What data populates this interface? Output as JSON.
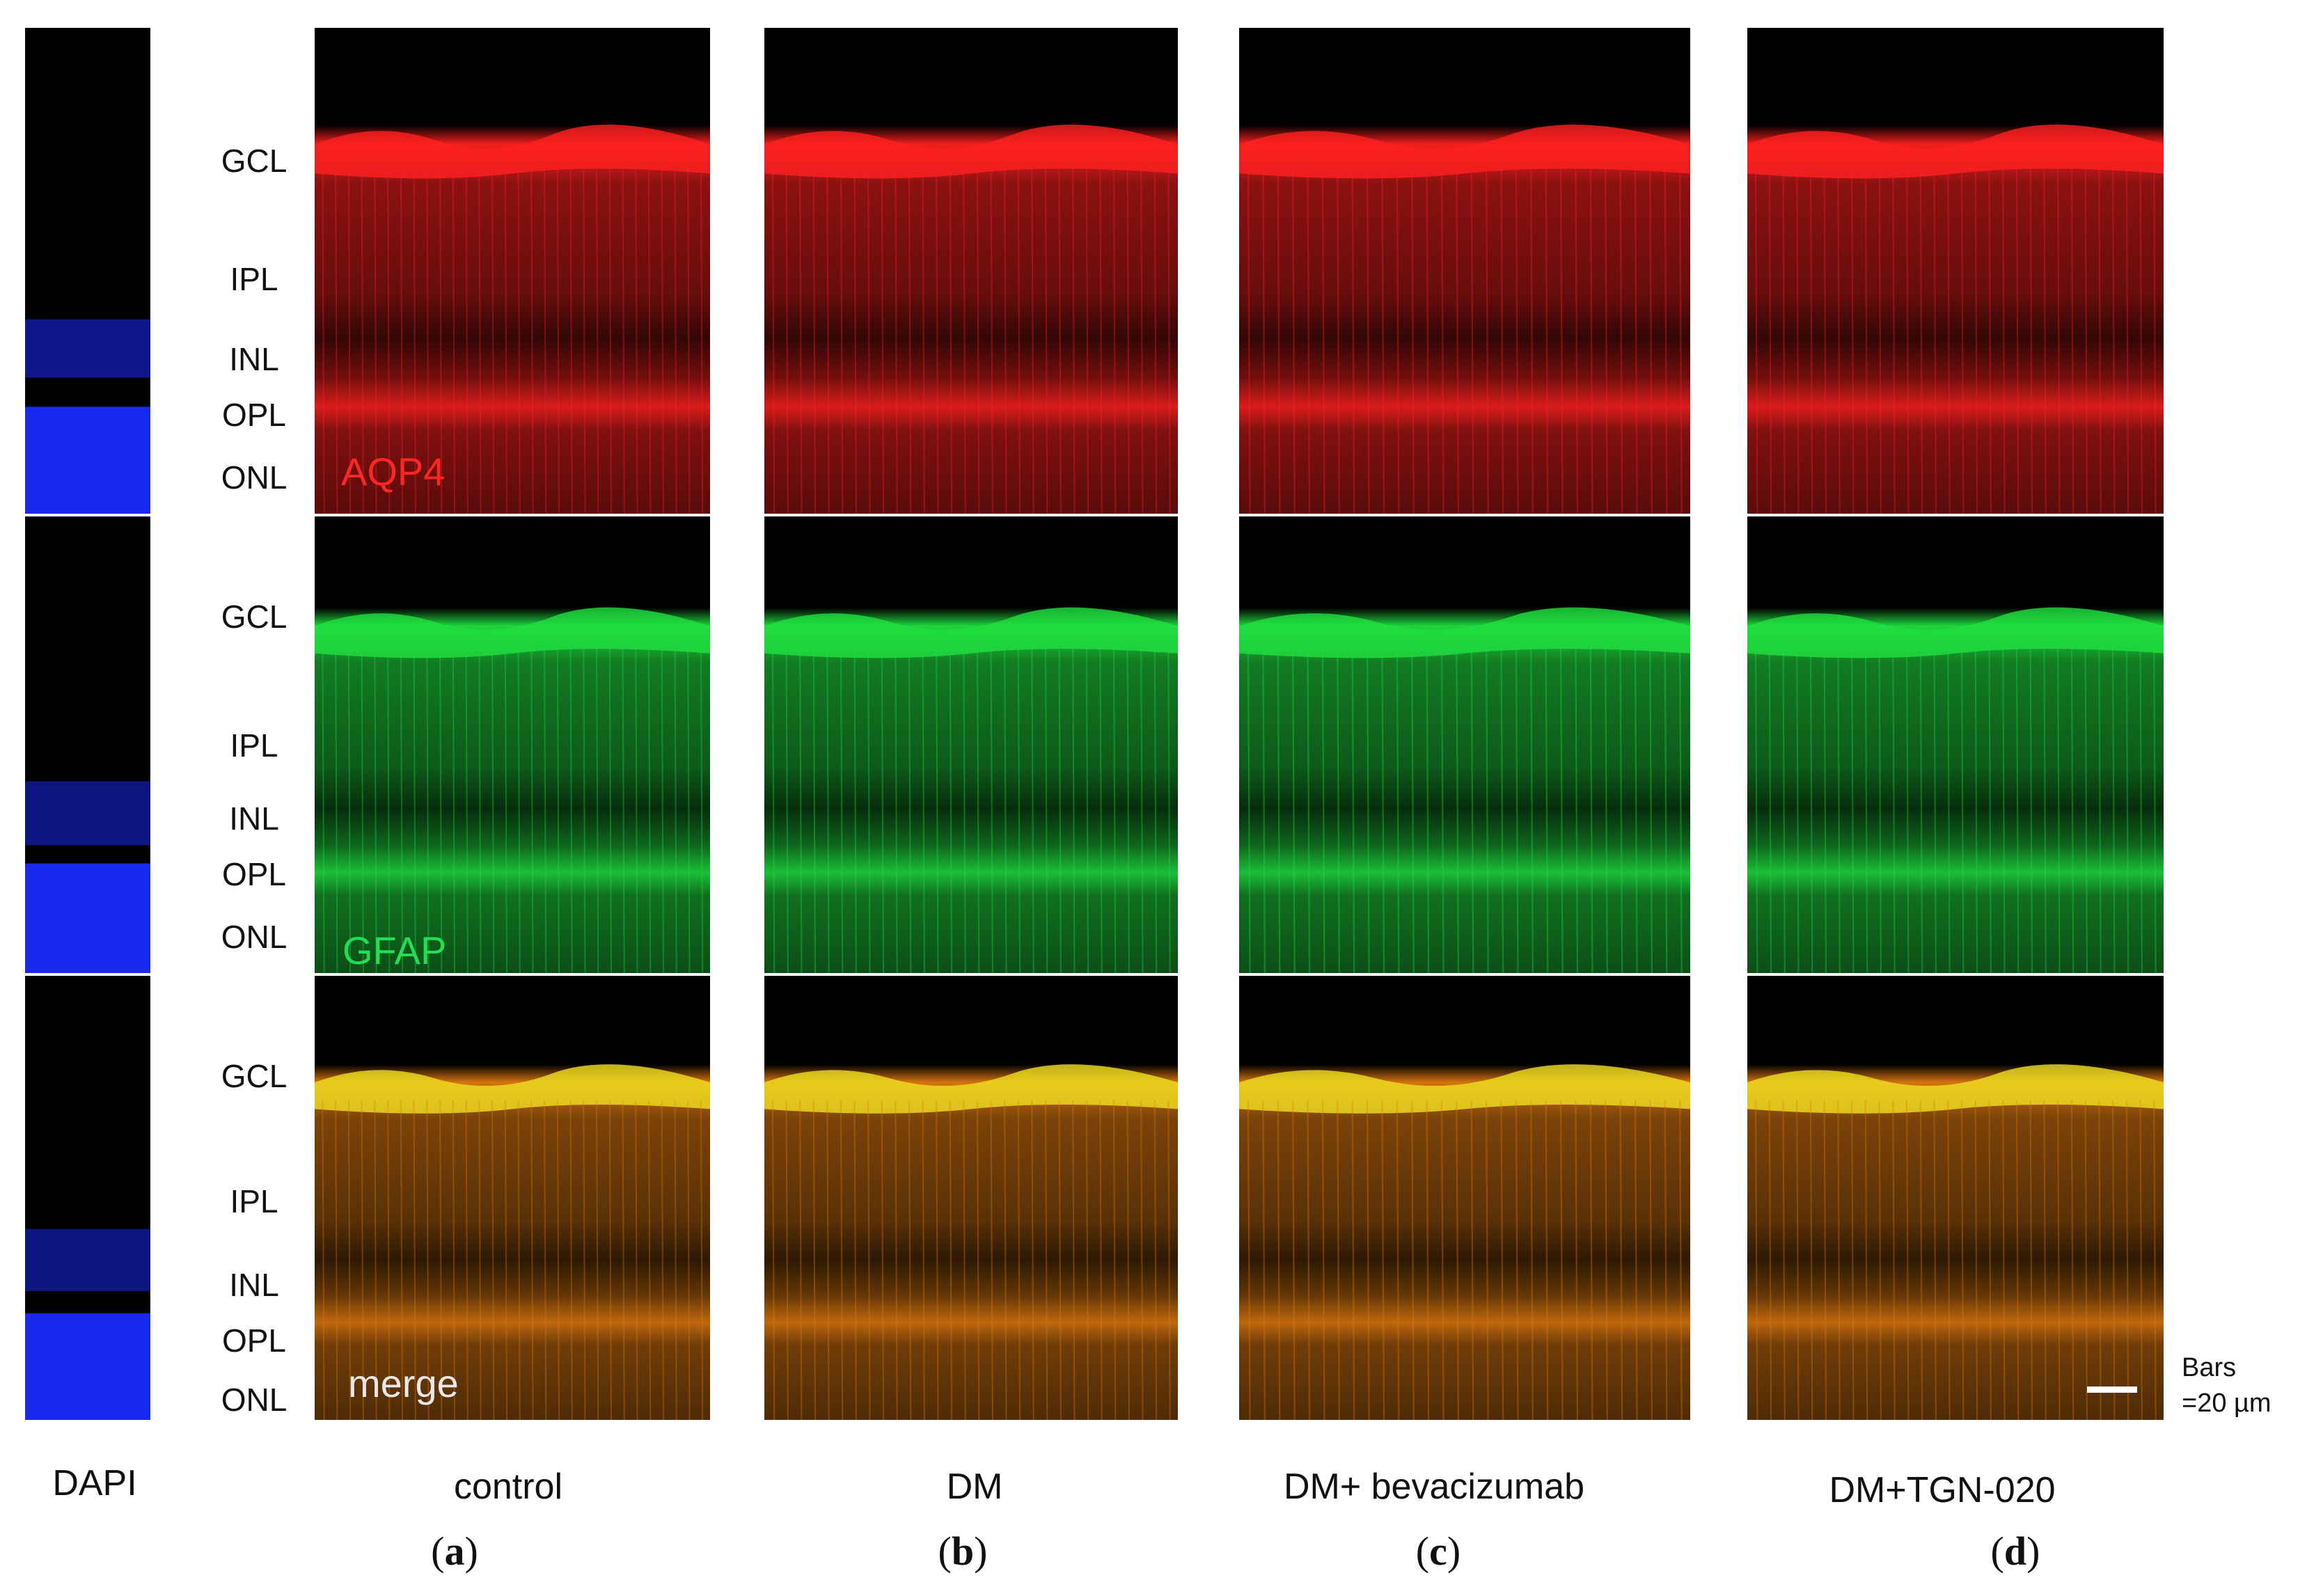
{
  "figure": {
    "stain_labels": {
      "aqp4": "AQP4",
      "gfap": "GFAP",
      "merge": "merge"
    },
    "layer_labels": [
      "GCL",
      "IPL",
      "INL",
      "OPL",
      "ONL"
    ],
    "dapi_label": "DAPI",
    "conditions": [
      {
        "name": "control",
        "letter": "a"
      },
      {
        "name": "DM",
        "letter": "b"
      },
      {
        "name": "DM+ bevacizumab",
        "letter": "c"
      },
      {
        "name": "DM+TGN-020",
        "letter": "d"
      }
    ],
    "scale_bar": {
      "line1": "Bars",
      "line2": "=20 µm"
    },
    "colors": {
      "aqp4": "#ff2020",
      "gfap": "#20e040",
      "dapi": "#1a2bff",
      "merge": "#e07a10",
      "background": "#000000"
    }
  }
}
